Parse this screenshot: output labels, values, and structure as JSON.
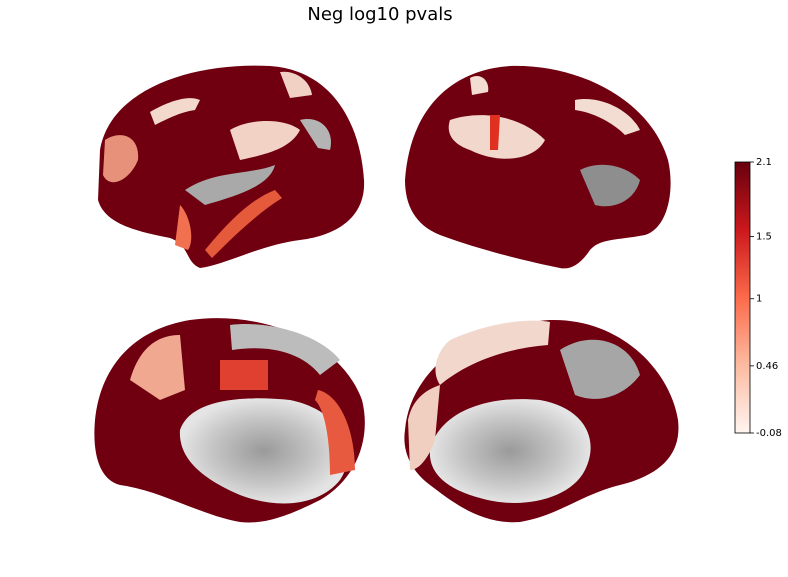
{
  "chart_data": {
    "type": "colorbar",
    "title": "Neg log10 pvals",
    "ylim": [
      -0.08,
      2.1
    ],
    "yticks": [
      -0.08,
      0.46,
      1,
      1.5,
      2.1
    ],
    "colors": [
      "#fff5f0",
      "#fcbba1",
      "#fb6a4a",
      "#cb181d",
      "#67000d"
    ]
  }
}
